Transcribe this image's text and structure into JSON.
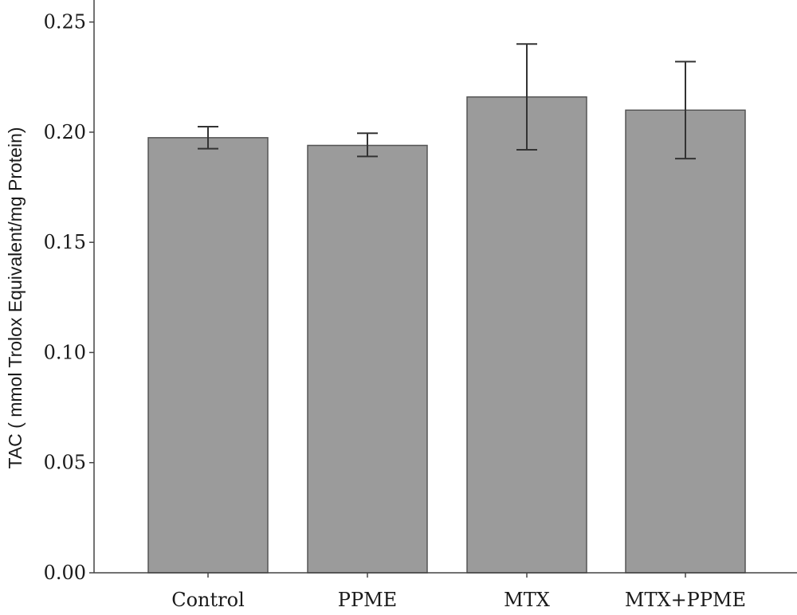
{
  "chart_data": {
    "type": "bar",
    "title": "",
    "xlabel": "",
    "ylabel": "TAC ( mmol Trolox Equivalent/mg Protein)",
    "categories": [
      "Control",
      "PPME",
      "MTX",
      "MTX+PPME"
    ],
    "values": [
      0.1975,
      0.194,
      0.216,
      0.21
    ],
    "error_upper": [
      0.2025,
      0.1995,
      0.24,
      0.232
    ],
    "error_lower": [
      0.1925,
      0.189,
      0.192,
      0.188
    ],
    "ylim": [
      0,
      0.26
    ],
    "yticks": [
      0.0,
      0.05,
      0.1,
      0.15,
      0.2,
      0.25
    ],
    "ytick_labels": [
      "0.00",
      "0.05",
      "0.10",
      "0.15",
      "0.20",
      "0.25"
    ],
    "grid": false,
    "colors": {
      "bar_fill": "#9b9b9b",
      "bar_stroke": "#555555",
      "error_bar": "#333333",
      "axis": "#444444"
    }
  }
}
